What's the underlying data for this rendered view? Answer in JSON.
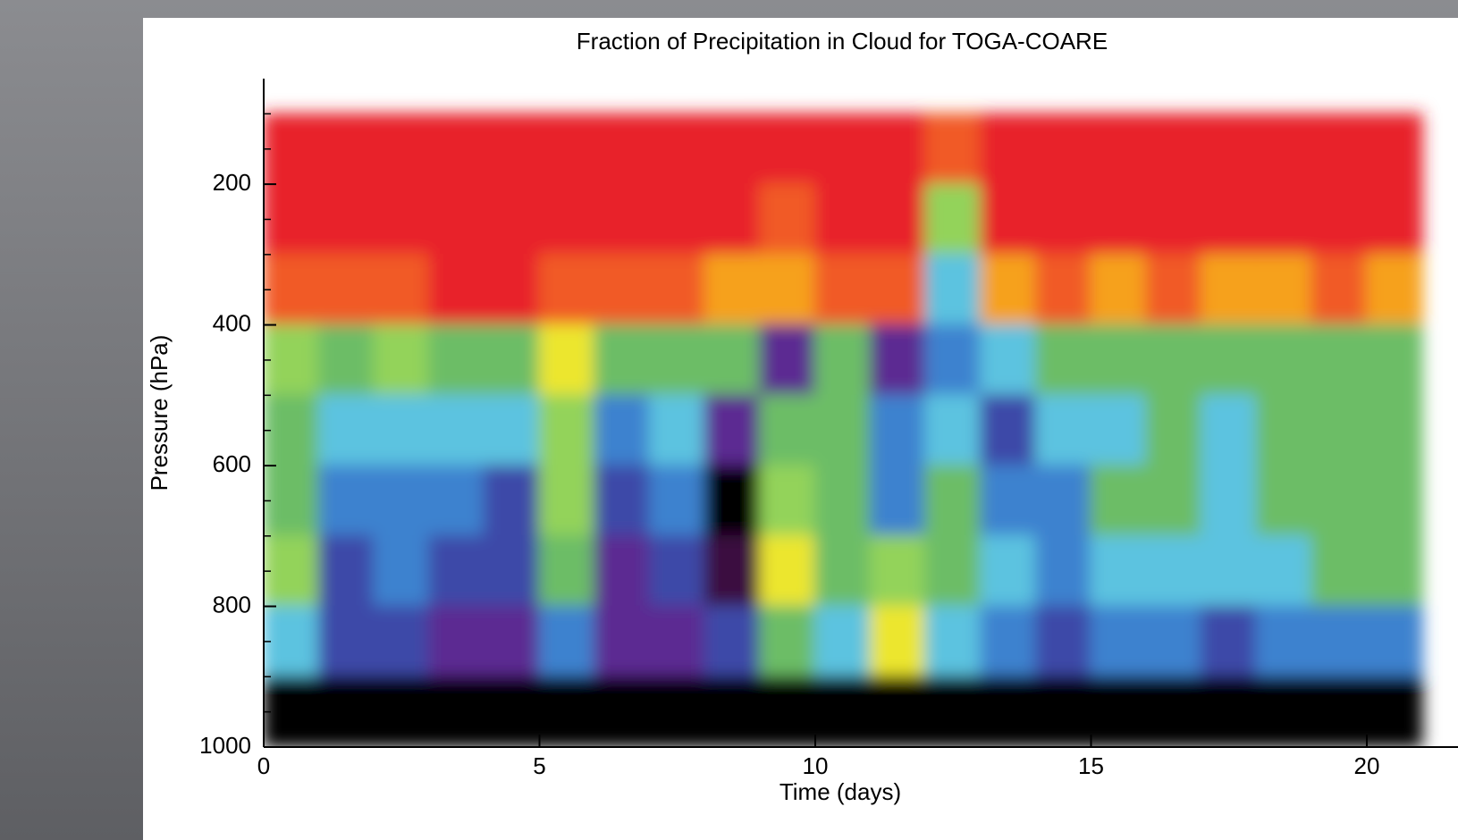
{
  "chart_data": {
    "type": "contour",
    "title": "Fraction of Precipitation in Cloud for TOGA-COARE",
    "xlabel": "Time (days)",
    "ylabel": "Pressure (hPa)",
    "xlim": [
      0,
      21.7
    ],
    "xticks": [
      0,
      5,
      10,
      15,
      20
    ],
    "ylim": [
      1000,
      50
    ],
    "yticks": [
      200,
      400,
      600,
      800,
      1000
    ],
    "yminorticks": [
      100,
      150,
      250,
      300,
      350,
      450,
      500,
      550,
      650,
      700,
      750,
      850,
      900,
      950
    ],
    "levels": [
      0,
      0.1,
      0.2,
      0.3,
      0.4,
      0.5,
      0.6,
      0.7,
      0.8,
      0.85,
      0.9,
      0.95
    ],
    "colors": [
      "#000000",
      "#3b0c3f",
      "#5b2a92",
      "#3d4aa8",
      "#3d82cf",
      "#5cc3e0",
      "#6cbd66",
      "#93d35a",
      "#ece62e",
      "#f6a11f",
      "#f15a28",
      "#e8242a"
    ],
    "x": [
      0.5,
      1.5,
      2.5,
      3.5,
      4.5,
      5.5,
      6.5,
      7.5,
      8.5,
      9.5,
      10.5,
      11.5,
      12.5,
      13.5,
      14.5,
      15.5,
      16.5,
      17.5,
      18.5,
      19.5,
      20.5
    ],
    "y": [
      150,
      250,
      350,
      450,
      550,
      650,
      750,
      850,
      950
    ],
    "z": [
      [
        0.97,
        0.97,
        0.93,
        0.75,
        0.65,
        0.6,
        0.7,
        0.55,
        0.05
      ],
      [
        0.97,
        0.97,
        0.92,
        0.68,
        0.5,
        0.4,
        0.35,
        0.3,
        0.05
      ],
      [
        0.97,
        0.97,
        0.92,
        0.7,
        0.55,
        0.45,
        0.4,
        0.3,
        0.05
      ],
      [
        0.97,
        0.97,
        0.95,
        0.68,
        0.5,
        0.4,
        0.35,
        0.25,
        0.05
      ],
      [
        0.97,
        0.97,
        0.95,
        0.68,
        0.5,
        0.35,
        0.3,
        0.25,
        0.05
      ],
      [
        0.97,
        0.97,
        0.9,
        0.8,
        0.7,
        0.7,
        0.6,
        0.4,
        0.05
      ],
      [
        0.97,
        0.97,
        0.93,
        0.68,
        0.45,
        0.3,
        0.25,
        0.2,
        0.05
      ],
      [
        0.97,
        0.97,
        0.9,
        0.68,
        0.5,
        0.4,
        0.3,
        0.25,
        0.05
      ],
      [
        0.97,
        0.95,
        0.88,
        0.6,
        0.2,
        0.05,
        0.1,
        0.3,
        0.05
      ],
      [
        0.97,
        0.93,
        0.88,
        0.2,
        0.6,
        0.75,
        0.8,
        0.6,
        0.05
      ],
      [
        0.97,
        0.95,
        0.9,
        0.65,
        0.6,
        0.62,
        0.65,
        0.5,
        0.05
      ],
      [
        0.97,
        0.97,
        0.93,
        0.25,
        0.4,
        0.45,
        0.75,
        0.8,
        0.05
      ],
      [
        0.9,
        0.7,
        0.55,
        0.45,
        0.55,
        0.6,
        0.6,
        0.5,
        0.05
      ],
      [
        0.97,
        0.97,
        0.85,
        0.55,
        0.35,
        0.45,
        0.55,
        0.4,
        0.05
      ],
      [
        0.97,
        0.97,
        0.9,
        0.62,
        0.5,
        0.45,
        0.45,
        0.35,
        0.05
      ],
      [
        0.97,
        0.97,
        0.88,
        0.6,
        0.55,
        0.6,
        0.55,
        0.45,
        0.05
      ],
      [
        0.97,
        0.97,
        0.9,
        0.65,
        0.6,
        0.62,
        0.55,
        0.45,
        0.05
      ],
      [
        0.97,
        0.97,
        0.88,
        0.6,
        0.55,
        0.55,
        0.5,
        0.3,
        0.05
      ],
      [
        0.97,
        0.95,
        0.88,
        0.62,
        0.6,
        0.6,
        0.55,
        0.45,
        0.05
      ],
      [
        0.97,
        0.97,
        0.9,
        0.62,
        0.6,
        0.62,
        0.6,
        0.45,
        0.05
      ],
      [
        0.95,
        0.95,
        0.88,
        0.65,
        0.6,
        0.6,
        0.6,
        0.45,
        0.05
      ]
    ]
  }
}
